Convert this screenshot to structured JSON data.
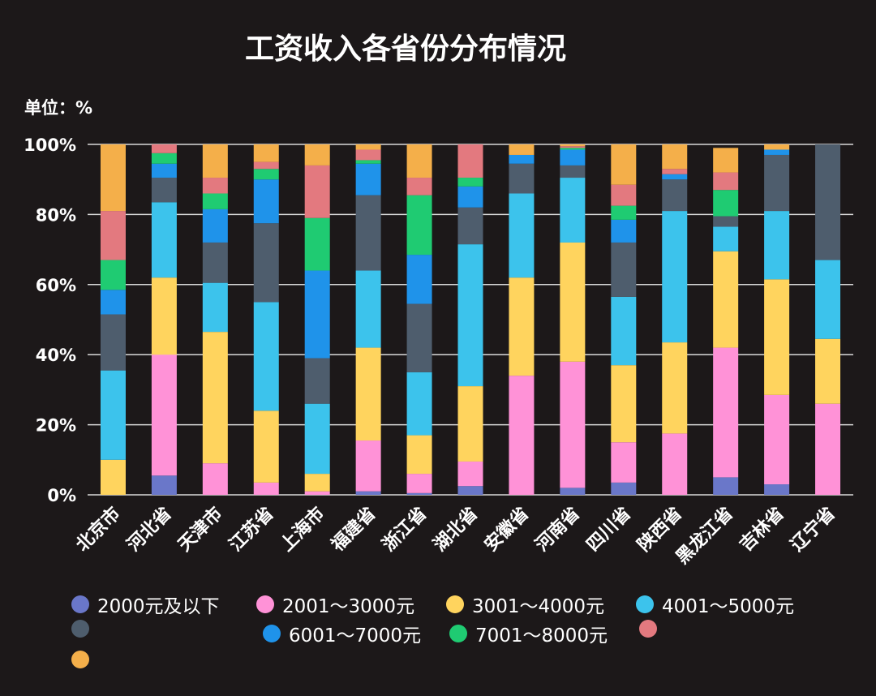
{
  "title": "工资收入各省份分布情况",
  "unit_label": "单位：%",
  "colors": {
    "background": "#1c1819",
    "grid": "#d9d9d9",
    "text": "#ffffff"
  },
  "chart_data": {
    "type": "bar",
    "stacked": true,
    "categories": [
      "北京市",
      "河北省",
      "天津市",
      "江苏省",
      "上海市",
      "福建省",
      "浙江省",
      "湖北省",
      "安徽省",
      "河南省",
      "四川省",
      "陕西省",
      "黑龙江省",
      "吉林省",
      "辽宁省"
    ],
    "y_ticks": [
      "0%",
      "20%",
      "40%",
      "60%",
      "80%",
      "100%"
    ],
    "ylim": [
      0,
      100
    ],
    "grid": true,
    "legend_position": "bottom",
    "series": [
      {
        "name": "2000元及以下",
        "color": "#6a77c9",
        "values": [
          0,
          5.5,
          0,
          0,
          0,
          1,
          0.5,
          2.5,
          0,
          2,
          3.5,
          0,
          5,
          3,
          0
        ]
      },
      {
        "name": "2001～3000元",
        "color": "#ff92d7",
        "values": [
          0,
          34.5,
          9,
          3.5,
          1,
          14.5,
          5.5,
          7,
          34,
          36,
          11.5,
          17.5,
          37,
          25.5,
          26
        ]
      },
      {
        "name": "3001～4000元",
        "color": "#ffd45e",
        "values": [
          10,
          22,
          37.5,
          20.5,
          5,
          26.5,
          11,
          21.5,
          28,
          34,
          22,
          26,
          27.5,
          33,
          18.5
        ]
      },
      {
        "name": "4001～5000元",
        "color": "#3cc3ec",
        "values": [
          25.5,
          21.5,
          14,
          31,
          20,
          22,
          18,
          40.5,
          24,
          18.5,
          19.5,
          37.5,
          7,
          19.5,
          22.5
        ]
      },
      {
        "name": "",
        "color": "#4e5d6d",
        "values": [
          16,
          7,
          11.5,
          22.5,
          13,
          21.5,
          19.5,
          10.5,
          8.5,
          3.5,
          15.5,
          9,
          3,
          16,
          33
        ]
      },
      {
        "name": "6001～7000元",
        "color": "#1f93ea",
        "values": [
          7,
          4,
          9.5,
          12.5,
          25,
          9,
          14,
          6,
          2.5,
          4.5,
          6.5,
          1.5,
          0,
          1.5,
          0
        ]
      },
      {
        "name": "7001～8000元",
        "color": "#1fcb72",
        "values": [
          8.5,
          3,
          4.5,
          3,
          15,
          1,
          17,
          2.5,
          0,
          0.5,
          4,
          0,
          7.5,
          0,
          0
        ]
      },
      {
        "name": "",
        "color": "#e3797f",
        "values": [
          14,
          2.5,
          4.5,
          2,
          15,
          3,
          5,
          9.5,
          0,
          0.5,
          6,
          1.5,
          5,
          0,
          0
        ]
      },
      {
        "name": "",
        "color": "#f4af4a",
        "values": [
          19,
          0,
          9.5,
          5,
          6,
          1.5,
          9.5,
          0,
          3,
          0.5,
          11.5,
          7,
          7,
          1.5,
          0
        ]
      }
    ]
  }
}
